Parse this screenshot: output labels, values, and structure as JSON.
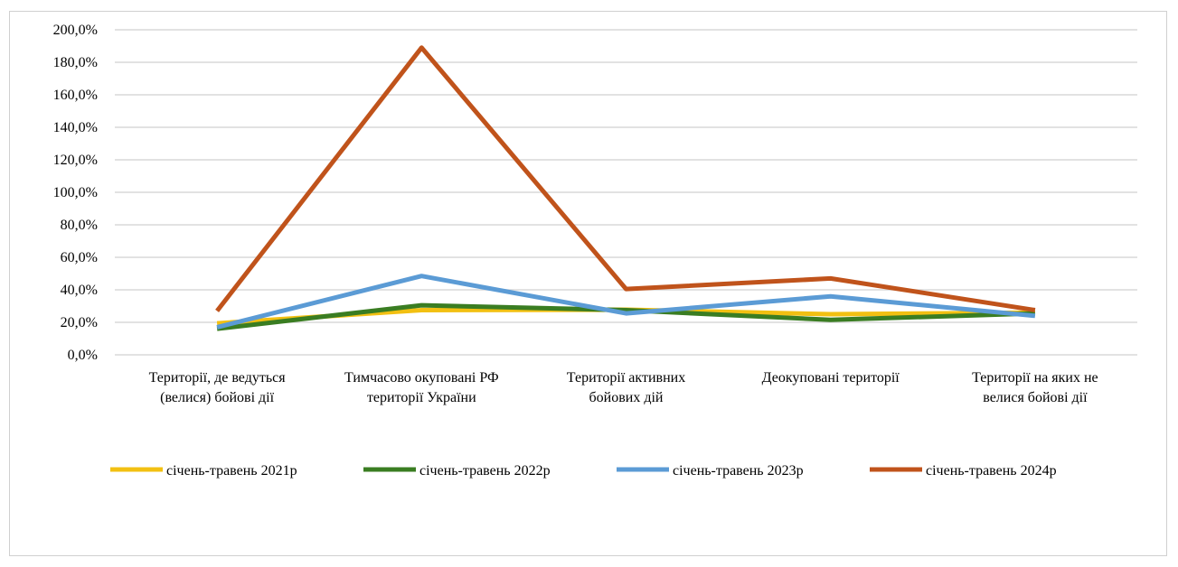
{
  "chart_data": {
    "type": "line",
    "title": "",
    "xlabel": "",
    "ylabel": "",
    "ylim": [
      0,
      200
    ],
    "yticks": [
      "0,0%",
      "20,0%",
      "40,0%",
      "60,0%",
      "80,0%",
      "100,0%",
      "120,0%",
      "140,0%",
      "160,0%",
      "180,0%",
      "200,0%"
    ],
    "grid": true,
    "legend_position": "bottom",
    "categories": [
      [
        "Території, де ведуться",
        "(велися) бойові дії"
      ],
      [
        "Тимчасово окуповані РФ",
        "території України"
      ],
      [
        "Території активних",
        "бойових дій"
      ],
      [
        "Деокуповані території"
      ],
      [
        "Території на яких не",
        "велися бойові дії"
      ]
    ],
    "series": [
      {
        "name": "січень-травень 2021р",
        "color": "#F2C012",
        "values": [
          19.4,
          27.5,
          27.8,
          25.0,
          26.0
        ]
      },
      {
        "name": "січень-травень 2022р",
        "color": "#3A7D22",
        "values": [
          16.0,
          30.5,
          27.5,
          21.5,
          25.5
        ]
      },
      {
        "name": "січень-травень 2023р",
        "color": "#5B9BD5",
        "values": [
          17.0,
          48.5,
          25.5,
          36.0,
          24.0
        ]
      },
      {
        "name": "січень-травень 2024р",
        "color": "#C0531B",
        "values": [
          27.0,
          189.0,
          40.5,
          47.0,
          27.5
        ]
      }
    ]
  }
}
